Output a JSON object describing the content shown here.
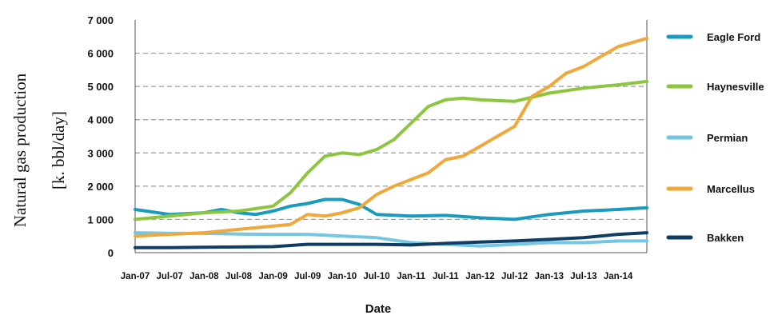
{
  "chart_data": {
    "type": "line",
    "xlabel": "Date",
    "ylabel_lines": [
      "Natural gas production",
      "[k. bbl/day]"
    ],
    "ylim": [
      0,
      7000
    ],
    "yticks": [
      0,
      1000,
      2000,
      3000,
      4000,
      5000,
      6000,
      7000
    ],
    "ytick_labels": [
      "0",
      "1 000",
      "2 000",
      "3 000",
      "4 000",
      "5 000",
      "6 000",
      "7 000"
    ],
    "xlim": [
      "2007-01",
      "2014-06"
    ],
    "x_tick_labels": [
      "Jan-07",
      "Jul-07",
      "Jan-08",
      "Jul-08",
      "Jan-09",
      "Jul-09",
      "Jan-10",
      "Jul-10",
      "Jan-11",
      "Jul-11",
      "Jan-12",
      "Jul-12",
      "Jan-13",
      "Jul-13",
      "Jan-14"
    ],
    "grid": "horizontal dashed",
    "legend_position": "right",
    "series": [
      {
        "name": "Eagle Ford",
        "color": "#1a9bbd",
        "points": [
          [
            "2007-01",
            1300
          ],
          [
            "2007-07",
            1150
          ],
          [
            "2008-01",
            1200
          ],
          [
            "2008-04",
            1300
          ],
          [
            "2008-07",
            1200
          ],
          [
            "2008-10",
            1150
          ],
          [
            "2009-01",
            1250
          ],
          [
            "2009-04",
            1400
          ],
          [
            "2009-07",
            1480
          ],
          [
            "2009-10",
            1600
          ],
          [
            "2010-01",
            1600
          ],
          [
            "2010-04",
            1450
          ],
          [
            "2010-07",
            1150
          ],
          [
            "2011-01",
            1100
          ],
          [
            "2011-07",
            1120
          ],
          [
            "2012-01",
            1050
          ],
          [
            "2012-07",
            1000
          ],
          [
            "2013-01",
            1150
          ],
          [
            "2013-07",
            1250
          ],
          [
            "2014-01",
            1300
          ],
          [
            "2014-06",
            1350
          ]
        ]
      },
      {
        "name": "Haynesville",
        "color": "#8cc63f",
        "points": [
          [
            "2007-01",
            1000
          ],
          [
            "2007-07",
            1100
          ],
          [
            "2008-01",
            1200
          ],
          [
            "2008-07",
            1250
          ],
          [
            "2009-01",
            1400
          ],
          [
            "2009-04",
            1800
          ],
          [
            "2009-07",
            2400
          ],
          [
            "2009-10",
            2900
          ],
          [
            "2010-01",
            3000
          ],
          [
            "2010-04",
            2950
          ],
          [
            "2010-07",
            3100
          ],
          [
            "2010-10",
            3400
          ],
          [
            "2011-01",
            3900
          ],
          [
            "2011-04",
            4400
          ],
          [
            "2011-07",
            4600
          ],
          [
            "2011-10",
            4650
          ],
          [
            "2012-01",
            4600
          ],
          [
            "2012-07",
            4550
          ],
          [
            "2013-01",
            4800
          ],
          [
            "2013-07",
            4950
          ],
          [
            "2014-01",
            5050
          ],
          [
            "2014-06",
            5150
          ]
        ]
      },
      {
        "name": "Permian",
        "color": "#74c6e2",
        "points": [
          [
            "2007-01",
            600
          ],
          [
            "2007-07",
            580
          ],
          [
            "2008-01",
            580
          ],
          [
            "2008-07",
            560
          ],
          [
            "2009-01",
            550
          ],
          [
            "2009-07",
            550
          ],
          [
            "2010-01",
            500
          ],
          [
            "2010-07",
            450
          ],
          [
            "2011-01",
            300
          ],
          [
            "2011-07",
            250
          ],
          [
            "2012-01",
            200
          ],
          [
            "2012-07",
            250
          ],
          [
            "2013-01",
            300
          ],
          [
            "2013-07",
            300
          ],
          [
            "2014-01",
            350
          ],
          [
            "2014-06",
            350
          ]
        ]
      },
      {
        "name": "Marcellus",
        "color": "#f0a83a",
        "points": [
          [
            "2007-01",
            500
          ],
          [
            "2007-07",
            550
          ],
          [
            "2008-01",
            600
          ],
          [
            "2008-07",
            700
          ],
          [
            "2009-01",
            800
          ],
          [
            "2009-04",
            850
          ],
          [
            "2009-07",
            1150
          ],
          [
            "2009-10",
            1100
          ],
          [
            "2010-01",
            1200
          ],
          [
            "2010-04",
            1350
          ],
          [
            "2010-07",
            1750
          ],
          [
            "2010-10",
            2000
          ],
          [
            "2011-01",
            2200
          ],
          [
            "2011-04",
            2400
          ],
          [
            "2011-07",
            2800
          ],
          [
            "2011-10",
            2900
          ],
          [
            "2012-01",
            3200
          ],
          [
            "2012-04",
            3500
          ],
          [
            "2012-07",
            3800
          ],
          [
            "2012-10",
            4700
          ],
          [
            "2013-01",
            5000
          ],
          [
            "2013-04",
            5400
          ],
          [
            "2013-07",
            5600
          ],
          [
            "2013-10",
            5900
          ],
          [
            "2014-01",
            6200
          ],
          [
            "2014-06",
            6450
          ]
        ]
      },
      {
        "name": "Bakken",
        "color": "#0f3d63",
        "points": [
          [
            "2007-01",
            150
          ],
          [
            "2007-07",
            150
          ],
          [
            "2008-01",
            160
          ],
          [
            "2008-07",
            170
          ],
          [
            "2009-01",
            180
          ],
          [
            "2009-07",
            250
          ],
          [
            "2010-01",
            250
          ],
          [
            "2010-07",
            250
          ],
          [
            "2011-01",
            230
          ],
          [
            "2011-07",
            280
          ],
          [
            "2012-01",
            320
          ],
          [
            "2012-07",
            350
          ],
          [
            "2013-01",
            400
          ],
          [
            "2013-07",
            450
          ],
          [
            "2014-01",
            550
          ],
          [
            "2014-06",
            600
          ]
        ]
      }
    ]
  }
}
